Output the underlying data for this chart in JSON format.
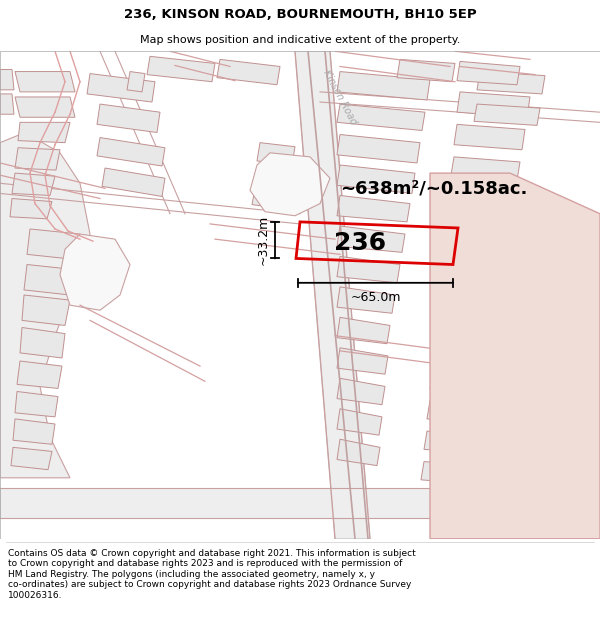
{
  "title_line1": "236, KINSON ROAD, BOURNEMOUTH, BH10 5EP",
  "title_line2": "Map shows position and indicative extent of the property.",
  "footer_text": "Contains OS data © Crown copyright and database right 2021. This information is subject to Crown copyright and database rights 2023 and is reproduced with the permission of HM Land Registry. The polygons (including the associated geometry, namely x, y co-ordinates) are subject to Crown copyright and database rights 2023 Ordnance Survey 100026316.",
  "area_label": "~638m²/~0.158ac.",
  "number_label": "236",
  "dim_width": "~65.0m",
  "dim_height": "~33.2m",
  "road_label": "Kinson Road",
  "map_bg": "#ffffff",
  "plot_outline_color": "#dd0000",
  "road_fill": "#f0f0f0",
  "road_edge": "#c08080",
  "building_fill": "#e8e8e8",
  "building_edge": "#c09090",
  "highlight_fill": "#f0ddd8",
  "highlight_edge": "#d4a0a0",
  "street_line": "#e8b0b0",
  "title_fontsize": 9.5,
  "subtitle_fontsize": 8,
  "area_fontsize": 13,
  "number_fontsize": 18,
  "dim_fontsize": 9,
  "footer_fontsize": 6.5
}
